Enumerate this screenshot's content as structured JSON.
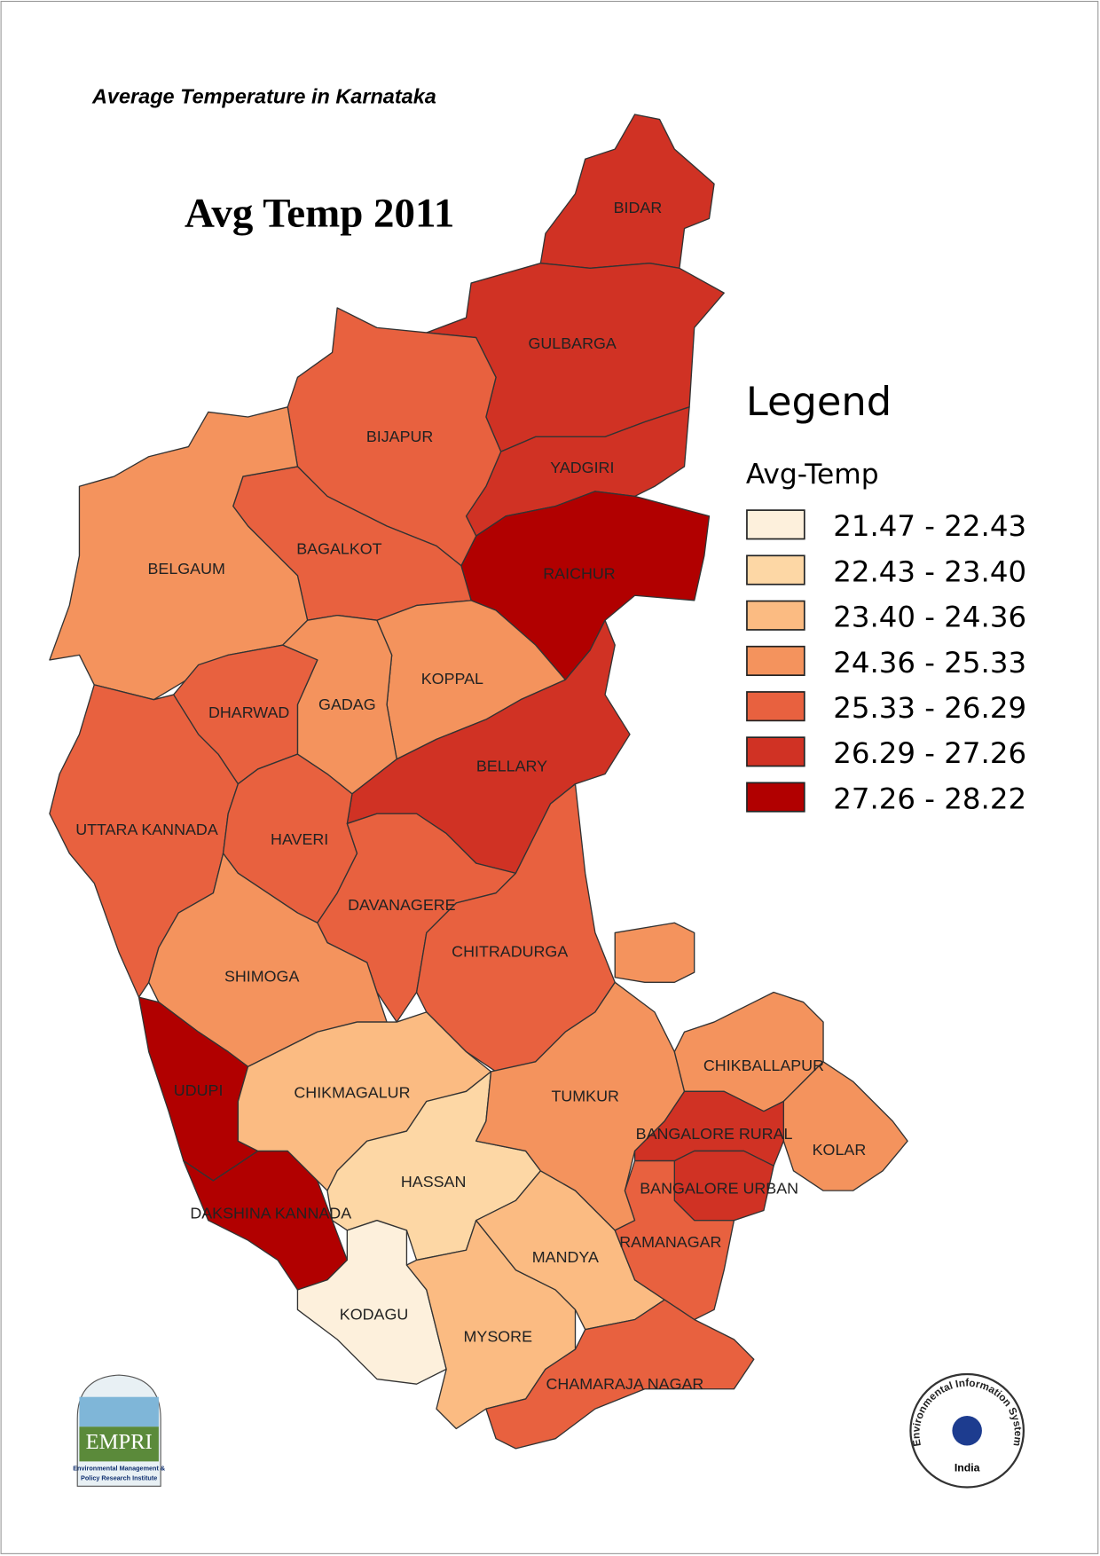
{
  "header": {
    "title": "Average Temperature  in Karnataka",
    "map_title": "Avg Temp 2011"
  },
  "legend": {
    "title": "Legend",
    "subtitle": "Avg-Temp",
    "classes": [
      {
        "label": "21.47 - 22.43",
        "color": "#fdf0dc"
      },
      {
        "label": "22.43 - 23.40",
        "color": "#fdd7a5"
      },
      {
        "label": "23.40 - 24.36",
        "color": "#fbbb82"
      },
      {
        "label": "24.36 - 25.33",
        "color": "#f4935d"
      },
      {
        "label": "25.33 - 26.29",
        "color": "#e8613f"
      },
      {
        "label": "26.29 - 27.26",
        "color": "#d03224"
      },
      {
        "label": "27.26 - 28.22",
        "color": "#b10000"
      }
    ]
  },
  "districts": [
    {
      "name": "BIDAR",
      "color": "#d03224"
    },
    {
      "name": "GULBARGA",
      "color": "#d03224"
    },
    {
      "name": "YADGIRI",
      "color": "#d03224"
    },
    {
      "name": "RAICHUR",
      "color": "#b10000"
    },
    {
      "name": "BIJAPUR",
      "color": "#e8613f"
    },
    {
      "name": "BAGALKOT",
      "color": "#e8613f"
    },
    {
      "name": "BELGAUM",
      "color": "#f4935d"
    },
    {
      "name": "KOPPAL",
      "color": "#f4935d"
    },
    {
      "name": "GADAG",
      "color": "#f4935d"
    },
    {
      "name": "DHARWAD",
      "color": "#e8613f"
    },
    {
      "name": "BELLARY",
      "color": "#d03224"
    },
    {
      "name": "UTTARA KANNADA",
      "color": "#e8613f"
    },
    {
      "name": "HAVERI",
      "color": "#e8613f"
    },
    {
      "name": "DAVANAGERE",
      "color": "#e8613f"
    },
    {
      "name": "CHITRADURGA",
      "color": "#e8613f"
    },
    {
      "name": "SHIMOGA",
      "color": "#f4935d"
    },
    {
      "name": "UDUPI",
      "color": "#b10000"
    },
    {
      "name": "DAKSHINA KANNADA",
      "color": "#b10000"
    },
    {
      "name": "CHIKMAGALUR",
      "color": "#fbbb82"
    },
    {
      "name": "HASSAN",
      "color": "#fdd7a5"
    },
    {
      "name": "KODAGU",
      "color": "#fdf0dc"
    },
    {
      "name": "MYSORE",
      "color": "#fbbb82"
    },
    {
      "name": "MANDYA",
      "color": "#fbbb82"
    },
    {
      "name": "TUMKUR",
      "color": "#f4935d"
    },
    {
      "name": "CHIKBALLAPUR",
      "color": "#f4935d"
    },
    {
      "name": "KOLAR",
      "color": "#f4935d"
    },
    {
      "name": "BANGALORE RURAL",
      "color": "#d03224"
    },
    {
      "name": "BANGALORE URBAN",
      "color": "#d03224"
    },
    {
      "name": "RAMANAGAR",
      "color": "#e8613f"
    },
    {
      "name": "CHAMARAJA NAGAR",
      "color": "#e8613f"
    }
  ],
  "logos": {
    "left": {
      "name": "EMPRI",
      "caption_1": "Environmental Management &",
      "caption_2": "Policy Research Institute"
    },
    "right": {
      "name": "Environmental Information System",
      "country": "India"
    }
  }
}
